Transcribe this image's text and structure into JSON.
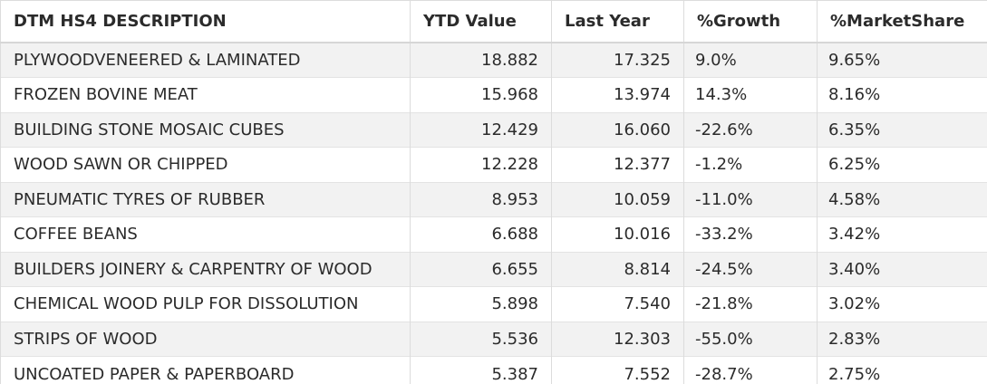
{
  "table": {
    "headers": [
      "DTM HS4 DESCRIPTION",
      "YTD Value",
      "Last Year",
      "%Growth",
      "%MarketShare"
    ],
    "rows": [
      {
        "description": "PLYWOODVENEERED & LAMINATED",
        "ytd": "18.882",
        "last_year": "17.325",
        "growth": "9.0%",
        "share": "9.65%"
      },
      {
        "description": "FROZEN BOVINE MEAT",
        "ytd": "15.968",
        "last_year": "13.974",
        "growth": "14.3%",
        "share": "8.16%"
      },
      {
        "description": "BUILDING STONE MOSAIC CUBES",
        "ytd": "12.429",
        "last_year": "16.060",
        "growth": "-22.6%",
        "share": "6.35%"
      },
      {
        "description": "WOOD SAWN OR CHIPPED",
        "ytd": "12.228",
        "last_year": "12.377",
        "growth": "-1.2%",
        "share": "6.25%"
      },
      {
        "description": "PNEUMATIC TYRES OF RUBBER",
        "ytd": "8.953",
        "last_year": "10.059",
        "growth": "-11.0%",
        "share": "4.58%"
      },
      {
        "description": "COFFEE BEANS",
        "ytd": "6.688",
        "last_year": "10.016",
        "growth": "-33.2%",
        "share": "3.42%"
      },
      {
        "description": "BUILDERS JOINERY & CARPENTRY OF WOOD",
        "ytd": "6.655",
        "last_year": "8.814",
        "growth": "-24.5%",
        "share": "3.40%"
      },
      {
        "description": "CHEMICAL WOOD PULP FOR DISSOLUTION",
        "ytd": "5.898",
        "last_year": "7.540",
        "growth": "-21.8%",
        "share": "3.02%"
      },
      {
        "description": "STRIPS OF WOOD",
        "ytd": "5.536",
        "last_year": "12.303",
        "growth": "-55.0%",
        "share": "2.83%"
      },
      {
        "description": "UNCOATED PAPER & PAPERBOARD",
        "ytd": "5.387",
        "last_year": "7.552",
        "growth": "-28.7%",
        "share": "2.75%"
      }
    ]
  }
}
